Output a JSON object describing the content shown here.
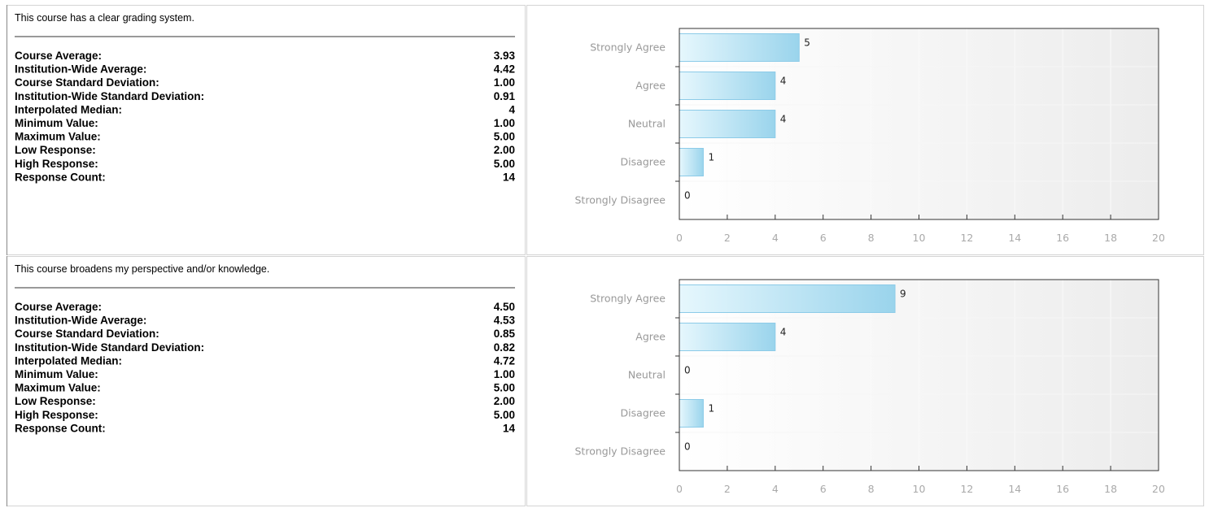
{
  "sections": [
    {
      "question": "This course has a clear grading system.",
      "stats": [
        {
          "label": "Course Average:",
          "value": "3.93"
        },
        {
          "label": "Institution-Wide Average:",
          "value": "4.42"
        },
        {
          "label": "Course Standard Deviation:",
          "value": "1.00"
        },
        {
          "label": "Institution-Wide Standard Deviation:",
          "value": "0.91"
        },
        {
          "label": "Interpolated Median:",
          "value": "4"
        },
        {
          "label": "Minimum Value:",
          "value": "1.00"
        },
        {
          "label": "Maximum Value:",
          "value": "5.00"
        },
        {
          "label": "Low Response:",
          "value": "2.00"
        },
        {
          "label": "High Response:",
          "value": "5.00"
        },
        {
          "label": "Response Count:",
          "value": "14"
        }
      ]
    },
    {
      "question": "This course broadens my perspective and/or knowledge.",
      "stats": [
        {
          "label": "Course Average:",
          "value": "4.50"
        },
        {
          "label": "Institution-Wide Average:",
          "value": "4.53"
        },
        {
          "label": "Course Standard Deviation:",
          "value": "0.85"
        },
        {
          "label": "Institution-Wide Standard Deviation:",
          "value": "0.82"
        },
        {
          "label": "Interpolated Median:",
          "value": "4.72"
        },
        {
          "label": "Minimum Value:",
          "value": "1.00"
        },
        {
          "label": "Maximum Value:",
          "value": "5.00"
        },
        {
          "label": "Low Response:",
          "value": "2.00"
        },
        {
          "label": "High Response:",
          "value": "5.00"
        },
        {
          "label": "Response Count:",
          "value": "14"
        }
      ]
    }
  ],
  "chart_data": [
    {
      "type": "bar",
      "orientation": "horizontal",
      "categories": [
        "Strongly Agree",
        "Agree",
        "Neutral",
        "Disagree",
        "Strongly Disagree"
      ],
      "values": [
        5,
        4,
        4,
        1,
        0
      ],
      "color": "#a6dcf2",
      "xlim": [
        0,
        20
      ],
      "xticks": [
        0,
        2,
        4,
        6,
        8,
        10,
        12,
        14,
        16,
        18,
        20
      ]
    },
    {
      "type": "bar",
      "orientation": "horizontal",
      "categories": [
        "Strongly Agree",
        "Agree",
        "Neutral",
        "Disagree",
        "Strongly Disagree"
      ],
      "values": [
        9,
        4,
        0,
        1,
        0
      ],
      "color": "#a6dcf2",
      "xlim": [
        0,
        20
      ],
      "xticks": [
        0,
        2,
        4,
        6,
        8,
        10,
        12,
        14,
        16,
        18,
        20
      ]
    }
  ]
}
